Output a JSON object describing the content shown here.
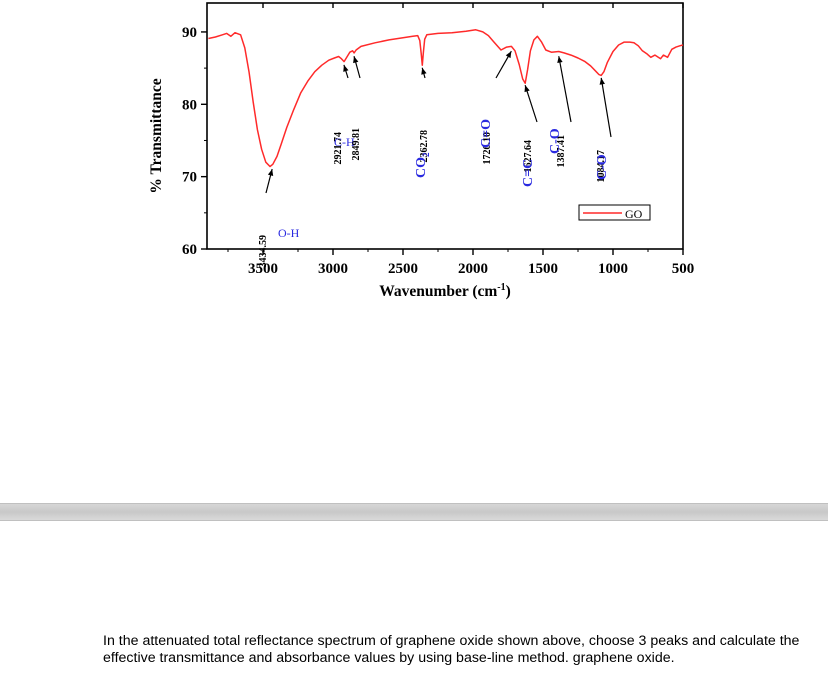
{
  "chart_data": {
    "type": "line",
    "xlabel": "Wavenumber (cm",
    "xlabel_sup": "-1",
    "xlabel_tail": ")",
    "ylabel": "% Transmittance",
    "xlim": [
      3900,
      500
    ],
    "ylim": [
      60,
      94
    ],
    "x_reversed": true,
    "x_ticks": [
      3500,
      3000,
      2500,
      2000,
      1500,
      1000,
      500
    ],
    "y_ticks": [
      60,
      70,
      80,
      90
    ],
    "grid": false,
    "legend": {
      "position": "right",
      "entries": [
        "GO"
      ]
    },
    "series": [
      {
        "name": "GO",
        "color": "#ff2a2a",
        "points": [
          [
            3890,
            89.1
          ],
          [
            3840,
            89.3
          ],
          [
            3790,
            89.6
          ],
          [
            3760,
            89.8
          ],
          [
            3730,
            89.4
          ],
          [
            3700,
            89.9
          ],
          [
            3660,
            89.6
          ],
          [
            3630,
            87.8
          ],
          [
            3600,
            84.5
          ],
          [
            3570,
            80.3
          ],
          [
            3540,
            76.5
          ],
          [
            3510,
            73.8
          ],
          [
            3480,
            72.0
          ],
          [
            3450,
            71.4
          ],
          [
            3430,
            71.7
          ],
          [
            3400,
            72.8
          ],
          [
            3370,
            74.5
          ],
          [
            3330,
            76.8
          ],
          [
            3280,
            79.3
          ],
          [
            3230,
            81.6
          ],
          [
            3180,
            83.2
          ],
          [
            3130,
            84.5
          ],
          [
            3080,
            85.4
          ],
          [
            3030,
            86.1
          ],
          [
            2990,
            86.4
          ],
          [
            2960,
            86.6
          ],
          [
            2940,
            86.3
          ],
          [
            2921,
            85.9
          ],
          [
            2905,
            86.4
          ],
          [
            2880,
            87.2
          ],
          [
            2860,
            87.4
          ],
          [
            2849,
            87.1
          ],
          [
            2835,
            87.5
          ],
          [
            2800,
            88.0
          ],
          [
            2700,
            88.5
          ],
          [
            2600,
            88.9
          ],
          [
            2500,
            89.2
          ],
          [
            2430,
            89.4
          ],
          [
            2395,
            89.5
          ],
          [
            2380,
            88.8
          ],
          [
            2370,
            87.0
          ],
          [
            2362,
            85.4
          ],
          [
            2354,
            87.2
          ],
          [
            2345,
            89.0
          ],
          [
            2330,
            89.6
          ],
          [
            2250,
            89.8
          ],
          [
            2150,
            89.9
          ],
          [
            2050,
            90.1
          ],
          [
            1980,
            90.3
          ],
          [
            1930,
            90.0
          ],
          [
            1890,
            89.5
          ],
          [
            1850,
            88.6
          ],
          [
            1800,
            87.5
          ],
          [
            1760,
            87.9
          ],
          [
            1726,
            88.0
          ],
          [
            1700,
            87.4
          ],
          [
            1670,
            85.5
          ],
          [
            1645,
            83.5
          ],
          [
            1627,
            82.9
          ],
          [
            1610,
            84.8
          ],
          [
            1590,
            87.4
          ],
          [
            1565,
            88.9
          ],
          [
            1540,
            89.4
          ],
          [
            1510,
            88.6
          ],
          [
            1480,
            87.5
          ],
          [
            1440,
            87.2
          ],
          [
            1387,
            87.3
          ],
          [
            1350,
            87.1
          ],
          [
            1300,
            86.8
          ],
          [
            1250,
            86.4
          ],
          [
            1200,
            85.9
          ],
          [
            1160,
            85.3
          ],
          [
            1120,
            84.5
          ],
          [
            1100,
            84.1
          ],
          [
            1084,
            84.0
          ],
          [
            1065,
            84.5
          ],
          [
            1040,
            85.8
          ],
          [
            1000,
            87.3
          ],
          [
            960,
            88.2
          ],
          [
            920,
            88.6
          ],
          [
            880,
            88.6
          ],
          [
            850,
            88.5
          ],
          [
            820,
            88.1
          ],
          [
            790,
            87.4
          ],
          [
            760,
            87.0
          ],
          [
            730,
            86.5
          ],
          [
            700,
            86.8
          ],
          [
            660,
            86.3
          ],
          [
            640,
            86.8
          ],
          [
            610,
            86.5
          ],
          [
            580,
            87.6
          ],
          [
            550,
            87.9
          ],
          [
            520,
            88.1
          ],
          [
            500,
            88.2
          ]
        ]
      }
    ],
    "annotations": [
      {
        "text": "3434.59",
        "x": 3434.59,
        "arrow_tip_y": 71.6,
        "label": "O-H",
        "label_color": "#2a2ae0"
      },
      {
        "text": "2921.74",
        "x": 2921.74,
        "arrow_tip_y": 86.0,
        "label": "C-H",
        "label_color": "#2a2ae0"
      },
      {
        "text": "2849.81",
        "x": 2849.81,
        "arrow_tip_y": 87.2,
        "label": "",
        "label_color": "#2a2ae0"
      },
      {
        "text": "2362.78",
        "x": 2362.78,
        "arrow_tip_y": 85.6,
        "label": "CO",
        "label_sub": "2",
        "label_color": "#2a2ae0"
      },
      {
        "text": "1726.10",
        "x": 1726.1,
        "arrow_tip_y": 87.9,
        "label": "C=O",
        "label_color": "#2a2ae0"
      },
      {
        "text": "1627.64",
        "x": 1627.64,
        "arrow_tip_y": 83.2,
        "label": "C=C",
        "label_color": "#2a2ae0"
      },
      {
        "text": "1387.41",
        "x": 1387.41,
        "arrow_tip_y": 87.2,
        "label": "C-O",
        "label_color": "#2a2ae0"
      },
      {
        "text": "1084.17",
        "x": 1084.17,
        "arrow_tip_y": 84.2,
        "label": "C-O",
        "label_color": "#2a2ae0"
      }
    ]
  },
  "question": {
    "text": "In the attenuated total reflectance spectrum of graphene oxide shown above, choose 3 peaks and calculate the effective transmittance and absorbance values by using base-line method. graphene oxide."
  }
}
